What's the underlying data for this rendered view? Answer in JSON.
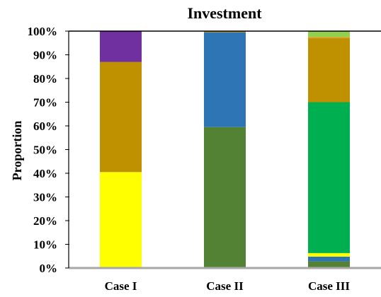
{
  "chart_data": {
    "type": "bar",
    "stacked": true,
    "title": "Investment",
    "xlabel": "",
    "ylabel": "Proportion",
    "ylim": [
      0,
      100
    ],
    "y_tick_labels": [
      "0%",
      "10%",
      "20%",
      "30%",
      "40%",
      "50%",
      "60%",
      "70%",
      "80%",
      "90%",
      "100%"
    ],
    "categories": [
      "Case I",
      "Case II",
      "Case III"
    ],
    "grid": false,
    "legend": "none",
    "segments": [
      {
        "category": "Case I",
        "values": [
          40.5,
          46.5,
          13.0
        ],
        "colors": [
          "#ffff00",
          "#bf9000",
          "#7030a0"
        ]
      },
      {
        "category": "Case II",
        "values": [
          59.5,
          40.0,
          0.5
        ],
        "colors": [
          "#548235",
          "#2e75b6",
          "#bf9000"
        ]
      },
      {
        "category": "Case III",
        "values": [
          2.8,
          2.0,
          1.5,
          63.7,
          27.0,
          0.5,
          2.5
        ],
        "colors": [
          "#548235",
          "#2e75b6",
          "#ffff00",
          "#00b050",
          "#bf9000",
          "#e2a020",
          "#92d050"
        ]
      }
    ],
    "colors": {
      "yellow": "#ffff00",
      "gold": "#bf9000",
      "purple": "#7030a0",
      "olive_green": "#548235",
      "blue": "#2e75b6",
      "bright_green": "#00b050",
      "light_green": "#92d050"
    }
  }
}
